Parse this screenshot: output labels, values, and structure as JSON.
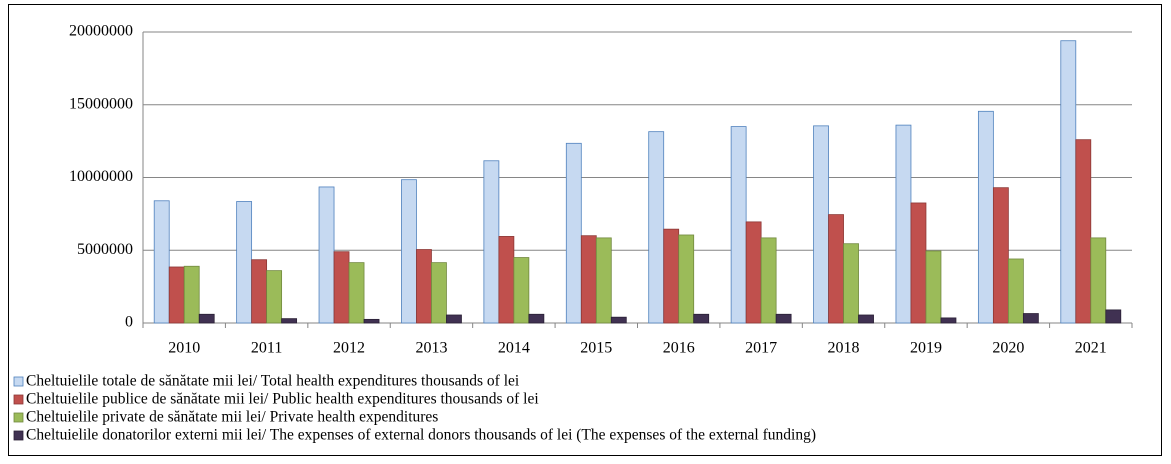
{
  "chart_data": {
    "type": "bar",
    "categories": [
      "2010",
      "2011",
      "2012",
      "2013",
      "2014",
      "2015",
      "2016",
      "2017",
      "2018",
      "2019",
      "2020",
      "2021"
    ],
    "series": [
      {
        "name": "Cheltuielile totale de sănătate mii lei/ Total health expenditures thousands of lei",
        "color": "#c6d9f1",
        "values": [
          8400000,
          8350000,
          9350000,
          9850000,
          11150000,
          12350000,
          13150000,
          13500000,
          13550000,
          13600000,
          14550000,
          19400000
        ]
      },
      {
        "name": "Cheltuielile publice de sănătate mii lei/ Public health expenditures  thousands of lei",
        "color": "#c0504d",
        "values": [
          3850000,
          4350000,
          4900000,
          5050000,
          5950000,
          6000000,
          6450000,
          6950000,
          7450000,
          8250000,
          9300000,
          12600000
        ]
      },
      {
        "name": "Cheltuielile private de sănătate mii lei/ Private health expenditures",
        "color": "#9bbb59",
        "values": [
          3900000,
          3600000,
          4150000,
          4150000,
          4500000,
          5850000,
          6050000,
          5850000,
          5450000,
          4950000,
          4400000,
          5850000
        ]
      },
      {
        "name": "Cheltuielile donatorilor externi mii lei/ The expenses of external donors thousands of lei (The expenses of the external funding)",
        "color": "#403152",
        "values": [
          600000,
          300000,
          250000,
          550000,
          600000,
          400000,
          600000,
          600000,
          550000,
          350000,
          650000,
          900000
        ]
      }
    ],
    "ylim": [
      0,
      20000000
    ],
    "yticks": [
      0,
      5000000,
      10000000,
      15000000,
      20000000
    ],
    "grid": true,
    "legend": "bottom"
  }
}
